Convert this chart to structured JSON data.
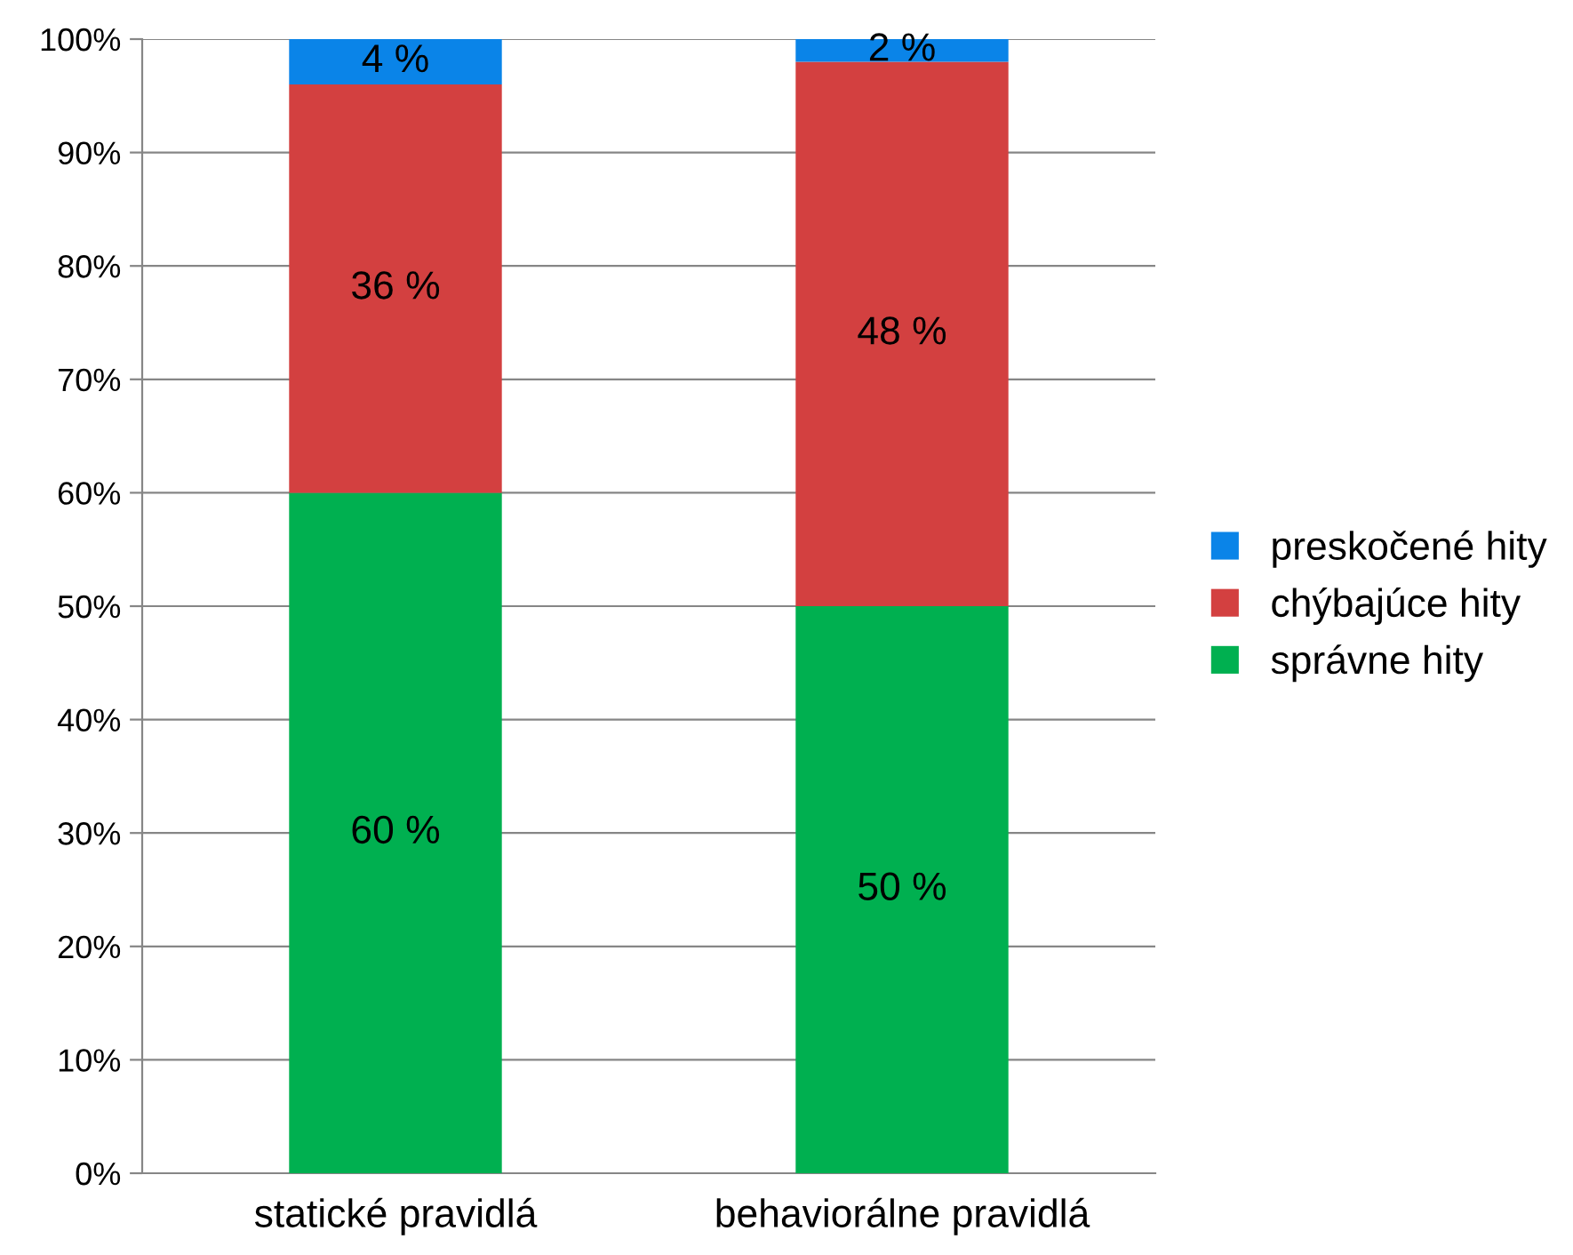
{
  "chart_data": {
    "type": "bar",
    "stacked": true,
    "categories": [
      "statické pravidlá",
      "behaviorálne pravidlá"
    ],
    "series": [
      {
        "name": "správne hity",
        "color": "#00b050",
        "values": [
          60,
          50
        ],
        "value_labels": [
          "60 %",
          "50 %"
        ]
      },
      {
        "name": "chýbajúce hity",
        "color": "#d34040",
        "values": [
          36,
          48
        ],
        "value_labels": [
          "36 %",
          "48 %"
        ]
      },
      {
        "name": "preskočené hity",
        "color": "#0a84e8",
        "values": [
          4,
          2
        ],
        "value_labels": [
          "4 %",
          "2 %"
        ]
      }
    ],
    "ylim": [
      0,
      100
    ],
    "yticks": [
      {
        "value": 0,
        "label": "0%"
      },
      {
        "value": 10,
        "label": "10%"
      },
      {
        "value": 20,
        "label": "20%"
      },
      {
        "value": 30,
        "label": "30%"
      },
      {
        "value": 40,
        "label": "40%"
      },
      {
        "value": 50,
        "label": "50%"
      },
      {
        "value": 60,
        "label": "60%"
      },
      {
        "value": 70,
        "label": "70%"
      },
      {
        "value": 80,
        "label": "80%"
      },
      {
        "value": 90,
        "label": "90%"
      },
      {
        "value": 100,
        "label": "100%"
      }
    ],
    "grid": "y",
    "legend": "right"
  }
}
